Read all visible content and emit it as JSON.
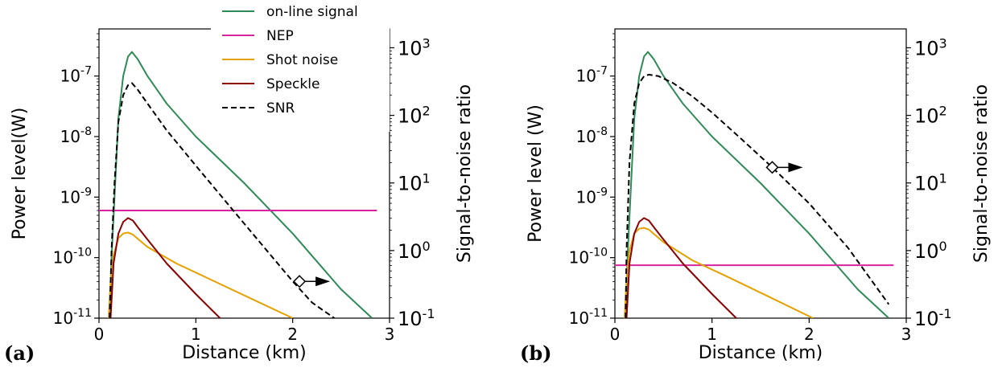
{
  "chart_data": [
    {
      "type": "line",
      "panel_label": "(a)",
      "xlabel": "Distance (km)",
      "ylabel": "Power level(W)",
      "ylabel_right": "Signal-to-noise ratio",
      "xlim": [
        0,
        3
      ],
      "ylim": [
        1e-11,
        6e-07
      ],
      "ylim_right": [
        0.1,
        1900
      ],
      "yscale": "log",
      "yscale_right": "log",
      "x_ticks": [
        "0",
        "1",
        "2",
        "3"
      ],
      "y_ticks": [
        "10^-11",
        "10^-10",
        "10^-9",
        "10^-8",
        "10^-7"
      ],
      "y_ticks_right": [
        "10^-1",
        "10^0",
        "10^1",
        "10^2",
        "10^3"
      ],
      "legend": [
        "on-line signal",
        "NEP",
        "Shot noise",
        "Speckle",
        "SNR"
      ],
      "legend_position": "top-right",
      "series": [
        {
          "name": "on-line signal",
          "axis": "left",
          "color": "#2e8b57",
          "x": [
            0.11,
            0.13,
            0.16,
            0.2,
            0.25,
            0.3,
            0.34,
            0.4,
            0.5,
            0.7,
            1.0,
            1.5,
            2.0,
            2.5,
            2.82
          ],
          "y": [
            1e-11,
            1e-10,
            1e-09,
            2e-08,
            1e-07,
            2.1e-07,
            2.5e-07,
            1.9e-07,
            1e-07,
            3.5e-08,
            1e-08,
            1.7e-09,
            2.5e-10,
            3e-11,
            1e-11
          ]
        },
        {
          "name": "NEP",
          "axis": "left",
          "color": "#d6249f",
          "x": [
            0,
            2.87
          ],
          "y": [
            6e-10,
            6e-10
          ]
        },
        {
          "name": "Shot noise",
          "axis": "left",
          "color": "#e5a100",
          "x": [
            0.1,
            0.12,
            0.15,
            0.2,
            0.25,
            0.3,
            0.35,
            0.5,
            0.8,
            1.2,
            1.6,
            2.0
          ],
          "y": [
            1e-11,
            4e-11,
            1.1e-10,
            2.1e-10,
            2.5e-10,
            2.6e-10,
            2.4e-10,
            1.5e-10,
            8e-11,
            4e-11,
            2e-11,
            1e-11
          ]
        },
        {
          "name": "Speckle",
          "axis": "left",
          "color": "#8b0000",
          "x": [
            0.12,
            0.15,
            0.2,
            0.25,
            0.3,
            0.35,
            0.4,
            0.5,
            0.7,
            1.0,
            1.25
          ],
          "y": [
            1e-11,
            8e-11,
            2.5e-10,
            3.9e-10,
            4.5e-10,
            4.1e-10,
            3.2e-10,
            2e-10,
            8e-11,
            2.5e-11,
            1e-11
          ]
        },
        {
          "name": "SNR",
          "axis": "right",
          "color": "#000000",
          "dash": true,
          "x": [
            0.11,
            0.13,
            0.16,
            0.2,
            0.25,
            0.3,
            0.34,
            0.4,
            0.5,
            0.7,
            1.0,
            1.5,
            2.0,
            2.2,
            2.43
          ],
          "y": [
            0.1,
            1,
            10,
            80,
            200,
            280,
            300,
            240,
            150,
            60,
            18,
            2.5,
            0.35,
            0.17,
            0.1
          ]
        }
      ],
      "marker": {
        "x": 2.07,
        "y": 0.35,
        "axis": "right",
        "arrow": "right"
      }
    },
    {
      "type": "line",
      "panel_label": "(b)",
      "xlabel": "Distance (km)",
      "ylabel": "Power level (W)",
      "ylabel_right": "Signal-to-noise ratio",
      "xlim": [
        0,
        3
      ],
      "ylim": [
        1e-11,
        6e-07
      ],
      "ylim_right": [
        0.1,
        1900
      ],
      "yscale": "log",
      "yscale_right": "log",
      "x_ticks": [
        "0",
        "1",
        "2",
        "3"
      ],
      "y_ticks": [
        "10^-11",
        "10^-10",
        "10^-9",
        "10^-8",
        "10^-7"
      ],
      "y_ticks_right": [
        "10^-1",
        "10^0",
        "10^1",
        "10^2",
        "10^3"
      ],
      "series": [
        {
          "name": "on-line signal",
          "axis": "left",
          "color": "#2e8b57",
          "x": [
            0.11,
            0.13,
            0.16,
            0.2,
            0.25,
            0.3,
            0.34,
            0.4,
            0.5,
            0.7,
            1.0,
            1.5,
            2.0,
            2.5,
            2.82
          ],
          "y": [
            1e-11,
            1e-10,
            1e-09,
            2e-08,
            1e-07,
            2.1e-07,
            2.5e-07,
            1.9e-07,
            1e-07,
            3.5e-08,
            1e-08,
            1.7e-09,
            2.5e-10,
            3e-11,
            1e-11
          ]
        },
        {
          "name": "NEP",
          "axis": "left",
          "color": "#d6249f",
          "x": [
            0,
            2.87
          ],
          "y": [
            7.5e-11,
            7.5e-11
          ]
        },
        {
          "name": "Shot noise",
          "axis": "left",
          "color": "#e5a100",
          "x": [
            0.1,
            0.12,
            0.15,
            0.2,
            0.25,
            0.3,
            0.35,
            0.5,
            0.8,
            1.2,
            1.6,
            2.04
          ],
          "y": [
            1e-11,
            4.5e-11,
            1.3e-10,
            2.5e-10,
            3e-10,
            3.1e-10,
            2.9e-10,
            1.8e-10,
            9e-11,
            4.5e-11,
            2.2e-11,
            1e-11
          ]
        },
        {
          "name": "Speckle",
          "axis": "left",
          "color": "#8b0000",
          "x": [
            0.12,
            0.15,
            0.2,
            0.25,
            0.3,
            0.35,
            0.4,
            0.5,
            0.7,
            1.0,
            1.25
          ],
          "y": [
            1e-11,
            8e-11,
            2.5e-10,
            3.9e-10,
            4.5e-10,
            4.1e-10,
            3.2e-10,
            2e-10,
            8e-11,
            2.5e-11,
            1e-11
          ]
        },
        {
          "name": "SNR",
          "axis": "right",
          "color": "#000000",
          "dash": true,
          "x": [
            0.11,
            0.12,
            0.15,
            0.2,
            0.25,
            0.3,
            0.35,
            0.45,
            0.6,
            0.8,
            1.0,
            1.3,
            1.62,
            2.0,
            2.4,
            2.82
          ],
          "y": [
            0.1,
            1,
            20,
            150,
            300,
            380,
            400,
            380,
            300,
            190,
            110,
            45,
            17,
            5,
            1.1,
            0.16
          ]
        }
      ],
      "marker": {
        "x": 1.62,
        "y": 17,
        "axis": "right",
        "arrow": "right"
      }
    }
  ]
}
